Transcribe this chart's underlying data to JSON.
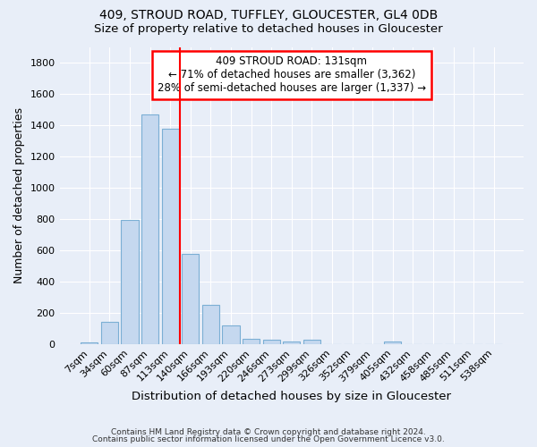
{
  "title_line1": "409, STROUD ROAD, TUFFLEY, GLOUCESTER, GL4 0DB",
  "title_line2": "Size of property relative to detached houses in Gloucester",
  "xlabel": "Distribution of detached houses by size in Gloucester",
  "ylabel": "Number of detached properties",
  "bar_color": "#c5d8ef",
  "bar_edge_color": "#7bafd4",
  "categories": [
    "7sqm",
    "34sqm",
    "60sqm",
    "87sqm",
    "113sqm",
    "140sqm",
    "166sqm",
    "193sqm",
    "220sqm",
    "246sqm",
    "273sqm",
    "299sqm",
    "326sqm",
    "352sqm",
    "379sqm",
    "405sqm",
    "432sqm",
    "458sqm",
    "485sqm",
    "511sqm",
    "538sqm"
  ],
  "values": [
    12,
    140,
    795,
    1470,
    1375,
    575,
    248,
    120,
    35,
    25,
    18,
    25,
    0,
    0,
    0,
    18,
    0,
    0,
    0,
    0,
    0
  ],
  "vline_x": 4.5,
  "annotation_title": "409 STROUD ROAD: 131sqm",
  "annotation_line2": "← 71% of detached houses are smaller (3,362)",
  "annotation_line3": "28% of semi-detached houses are larger (1,337) →",
  "annotation_box_color": "white",
  "annotation_box_edge_color": "red",
  "vline_color": "red",
  "ylim": [
    0,
    1900
  ],
  "yticks": [
    0,
    200,
    400,
    600,
    800,
    1000,
    1200,
    1400,
    1600,
    1800
  ],
  "footer1": "Contains HM Land Registry data © Crown copyright and database right 2024.",
  "footer2": "Contains public sector information licensed under the Open Government Licence v3.0.",
  "background_color": "#e8eef8",
  "plot_bg_color": "#e8eef8",
  "grid_color": "white",
  "title_fontsize": 10,
  "subtitle_fontsize": 9.5,
  "tick_fontsize": 8,
  "ylabel_fontsize": 9,
  "xlabel_fontsize": 9.5
}
